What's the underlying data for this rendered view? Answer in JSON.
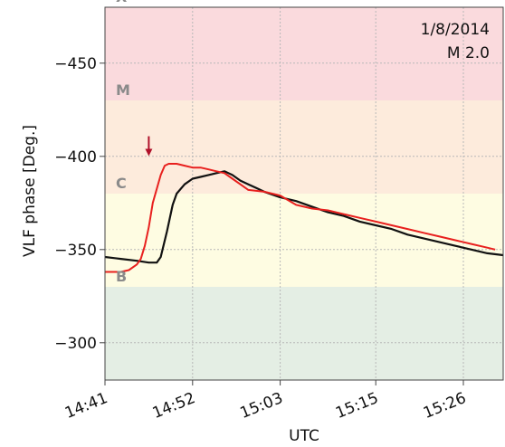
{
  "chart_data": {
    "type": "line",
    "xlabel": "UTC",
    "ylabel": "VLF phase [Deg.]",
    "annotation": {
      "date": "1/8/2014",
      "flare": "M 2.0"
    },
    "x_ticks": [
      "14:41",
      "14:52",
      "15:03",
      "15:15",
      "15:26"
    ],
    "x_tick_minutes": [
      0,
      11,
      22,
      34,
      45
    ],
    "xlim_minutes": [
      0,
      50
    ],
    "y_ticks": [
      -450,
      -400,
      -350,
      -300
    ],
    "ylim": [
      -280,
      -480
    ],
    "grid": true,
    "bands": [
      {
        "label": "X",
        "from": -480,
        "to": -430,
        "color": "#fadadd"
      },
      {
        "label": "M",
        "from": -430,
        "to": -380,
        "color": "#fdebdc"
      },
      {
        "label": "C",
        "from": -380,
        "to": -330,
        "color": "#fefce2"
      },
      {
        "label": "B",
        "from": -330,
        "to": -280,
        "color": "#e4eee4"
      }
    ],
    "marker": {
      "minute": 5.5,
      "value": -404,
      "color": "#b0102a"
    },
    "series": [
      {
        "color": "#111111",
        "x": [
          0,
          2,
          4,
          5.5,
          6.5,
          7,
          7.8,
          8.5,
          9,
          10,
          11,
          12,
          13,
          14,
          15,
          16,
          17,
          18,
          19,
          20,
          22,
          24,
          26,
          28,
          30,
          32,
          34,
          36,
          38,
          40,
          42,
          44,
          46,
          48,
          50
        ],
        "y": [
          -346,
          -345,
          -344,
          -343,
          -343,
          -346,
          -360,
          -374,
          -380,
          -385,
          -388,
          -389,
          -390,
          -391,
          -392,
          -390,
          -387,
          -385,
          -383,
          -381,
          -378,
          -376,
          -373,
          -370,
          -368,
          -365,
          -363,
          -361,
          -358,
          -356,
          -354,
          -352,
          -350,
          -348,
          -347
        ]
      },
      {
        "color": "#e8201e",
        "x": [
          0,
          2,
          3,
          4,
          4.5,
          5,
          5.5,
          6,
          7,
          7.5,
          8,
          9,
          10,
          11,
          12,
          13,
          14,
          15,
          16,
          17,
          18,
          20,
          22,
          24,
          26,
          28,
          30,
          32,
          34,
          36,
          38,
          40,
          42,
          44,
          46,
          48,
          49
        ],
        "y": [
          -338,
          -338,
          -339,
          -342,
          -345,
          -352,
          -362,
          -375,
          -390,
          -395,
          -396,
          -396,
          -395,
          -394,
          -394,
          -393,
          -392,
          -391,
          -388,
          -385,
          -382,
          -381,
          -379,
          -374,
          -372,
          -371,
          -369,
          -367,
          -365,
          -363,
          -361,
          -359,
          -357,
          -355,
          -353,
          -351,
          -350
        ]
      }
    ]
  }
}
